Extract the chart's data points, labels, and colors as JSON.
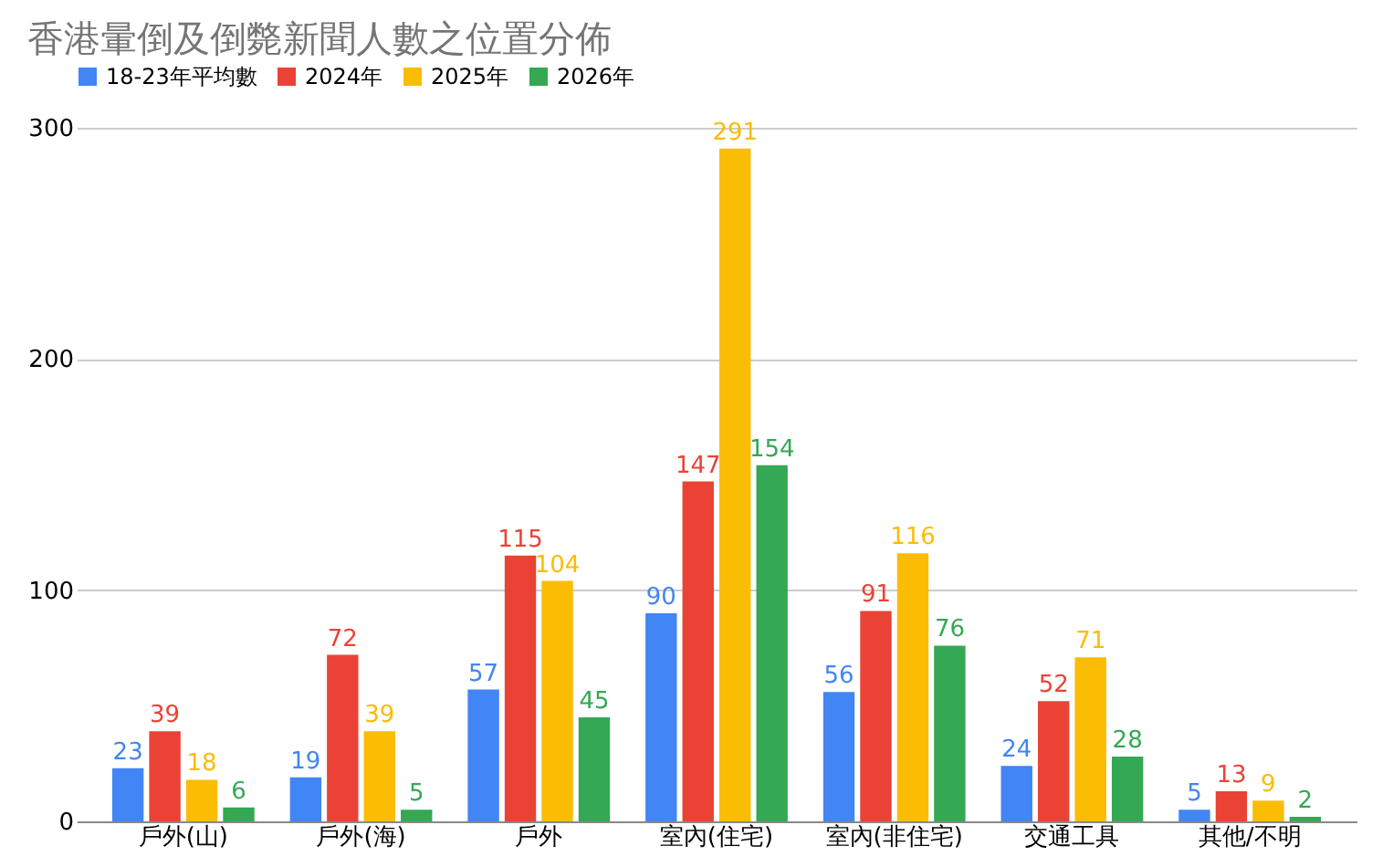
{
  "chart_data": {
    "type": "bar",
    "title": "香港暈倒及倒斃新聞人數之位置分佈",
    "categories": [
      "戶外(山)",
      "戶外(海)",
      "戶外",
      "室內(住宅)",
      "室內(非住宅)",
      "交通工具",
      "其他/不明"
    ],
    "series": [
      {
        "name": "18-23年平均數",
        "color": "#4285f4",
        "values": [
          23,
          19,
          57,
          90,
          56,
          24,
          5
        ]
      },
      {
        "name": "2024年",
        "color": "#ea4335",
        "values": [
          39,
          72,
          115,
          147,
          91,
          52,
          13
        ]
      },
      {
        "name": "2025年",
        "color": "#fbbc04",
        "values": [
          18,
          39,
          104,
          291,
          116,
          71,
          9
        ]
      },
      {
        "name": "2026年",
        "color": "#34a853",
        "values": [
          6,
          5,
          45,
          154,
          76,
          28,
          2
        ]
      }
    ],
    "ylim": [
      0,
      300
    ],
    "yticks": [
      0,
      100,
      200,
      300
    ],
    "grid": "y",
    "legend": "top",
    "data_labels": true
  }
}
